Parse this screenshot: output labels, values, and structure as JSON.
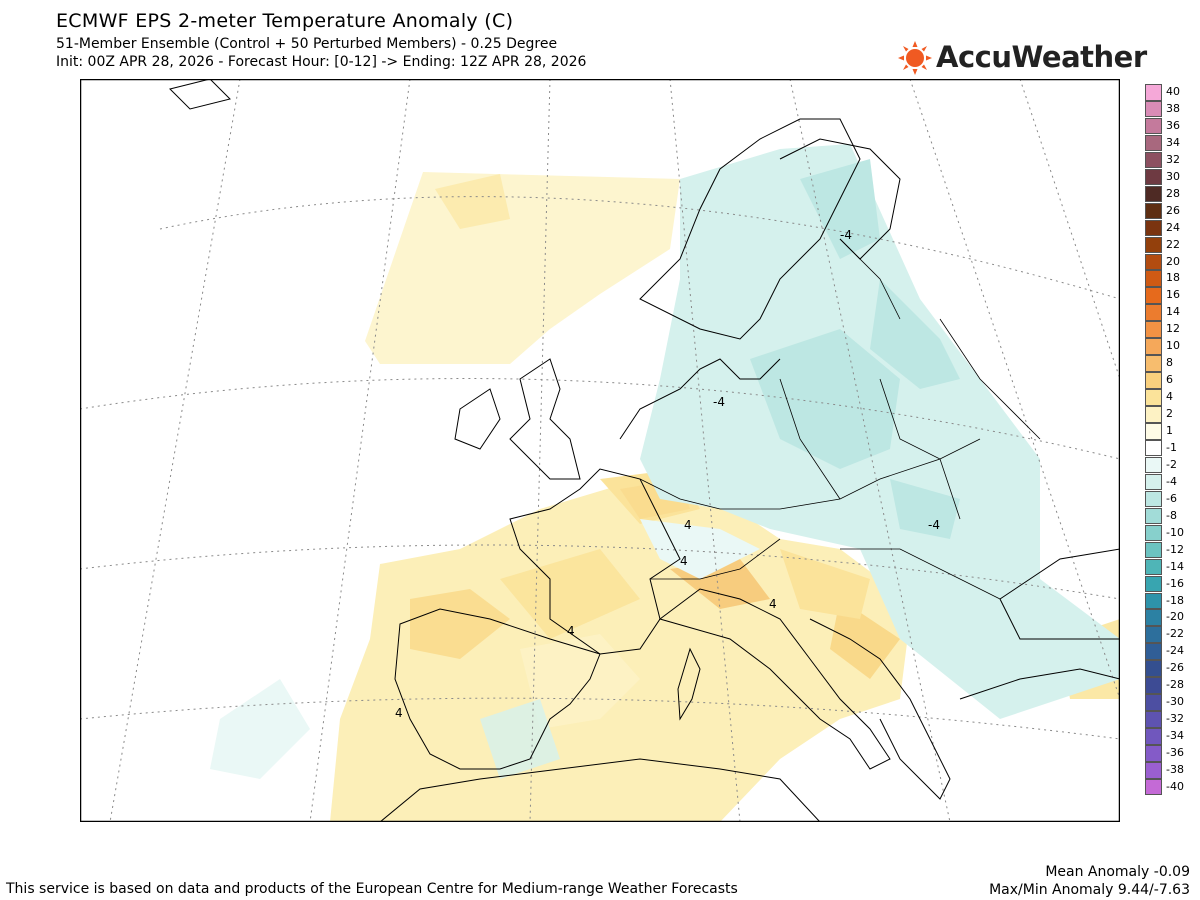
{
  "header": {
    "title": "ECMWF EPS 2-meter Temperature Anomaly (C)",
    "subtitle": "51-Member Ensemble (Control + 50 Perturbed Members) - 0.25 Degree",
    "init_line": "Init: 00Z APR 28, 2026 - Forecast Hour: [0-12] -> Ending: 12Z APR 28, 2026"
  },
  "logo": {
    "name": "AccuWeather",
    "icon": "sun-icon",
    "color": "#f05a22"
  },
  "map": {
    "region": "Europe",
    "contour_labels": [
      "-4",
      "-4",
      "-4",
      "4",
      "4",
      "4",
      "4",
      "4"
    ]
  },
  "colorbar": {
    "labels": [
      "40",
      "38",
      "36",
      "34",
      "32",
      "30",
      "28",
      "26",
      "24",
      "22",
      "20",
      "18",
      "16",
      "14",
      "12",
      "10",
      "8",
      "6",
      "4",
      "2",
      "1",
      "-1",
      "-2",
      "-4",
      "-6",
      "-8",
      "-10",
      "-12",
      "-14",
      "-16",
      "-18",
      "-20",
      "-22",
      "-24",
      "-26",
      "-28",
      "-30",
      "-32",
      "-34",
      "-36",
      "-38",
      "-40"
    ],
    "colors": [
      "#f5a8d8",
      "#d98cb6",
      "#c47a9c",
      "#a8687e",
      "#8c5060",
      "#6e3a42",
      "#4e2a24",
      "#5e2e12",
      "#7a3410",
      "#93400c",
      "#b34c10",
      "#cf5a14",
      "#e66a1c",
      "#ec7c2e",
      "#f29244",
      "#f5a85a",
      "#f7bd6e",
      "#f9d07e",
      "#fbe39a",
      "#fdf2c4",
      "#fefbe6",
      "#ffffff",
      "#eaf8f6",
      "#d5f1ed",
      "#bde7e3",
      "#a2dcd8",
      "#87d0cc",
      "#6cc3c1",
      "#4fb5b7",
      "#38a5b0",
      "#2e93aa",
      "#2c81a3",
      "#2d6f9c",
      "#305e96",
      "#344f8f",
      "#3d4b94",
      "#4d4fa2",
      "#5e53b0",
      "#7057bd",
      "#845bc8",
      "#9a5fd0",
      "#c46ad6"
    ]
  },
  "footer": {
    "attribution": "This service is based on data and products of the European Centre for Medium-range Weather Forecasts",
    "mean_anomaly": "Mean Anomaly -0.09",
    "maxmin_anomaly": "Max/Min Anomaly 9.44/-7.63"
  }
}
